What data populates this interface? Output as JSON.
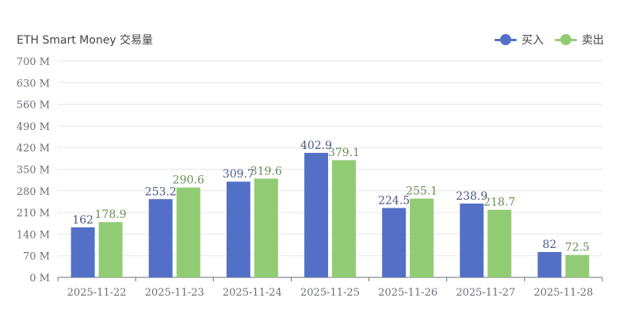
{
  "title": "ETH Smart Money 交易量",
  "legend": {
    "buy_label": "买入",
    "sell_label": "卖出"
  },
  "colors": {
    "buy": "#5470c6",
    "sell": "#91cc75",
    "grid": "#e6e6e6",
    "axis": "#6e7079",
    "label_buy": "#4b5a86",
    "label_sell": "#6b8f55"
  },
  "chart_data": {
    "type": "bar",
    "title": "ETH Smart Money 交易量",
    "categories": [
      "2025-11-22",
      "2025-11-23",
      "2025-11-24",
      "2025-11-25",
      "2025-11-26",
      "2025-11-27",
      "2025-11-28"
    ],
    "series": [
      {
        "name": "买入",
        "values": [
          162,
          253.2,
          309.7,
          402.9,
          224.5,
          238.9,
          82
        ]
      },
      {
        "name": "卖出",
        "values": [
          178.9,
          290.6,
          319.6,
          379.1,
          255.1,
          218.7,
          72.5
        ]
      }
    ],
    "ylim": [
      0,
      700
    ],
    "yticks": [
      0,
      70,
      140,
      210,
      280,
      350,
      420,
      490,
      560,
      630,
      700
    ],
    "ytick_suffix": " M",
    "grid": true,
    "legend_position": "top-right",
    "data_labels": true
  }
}
